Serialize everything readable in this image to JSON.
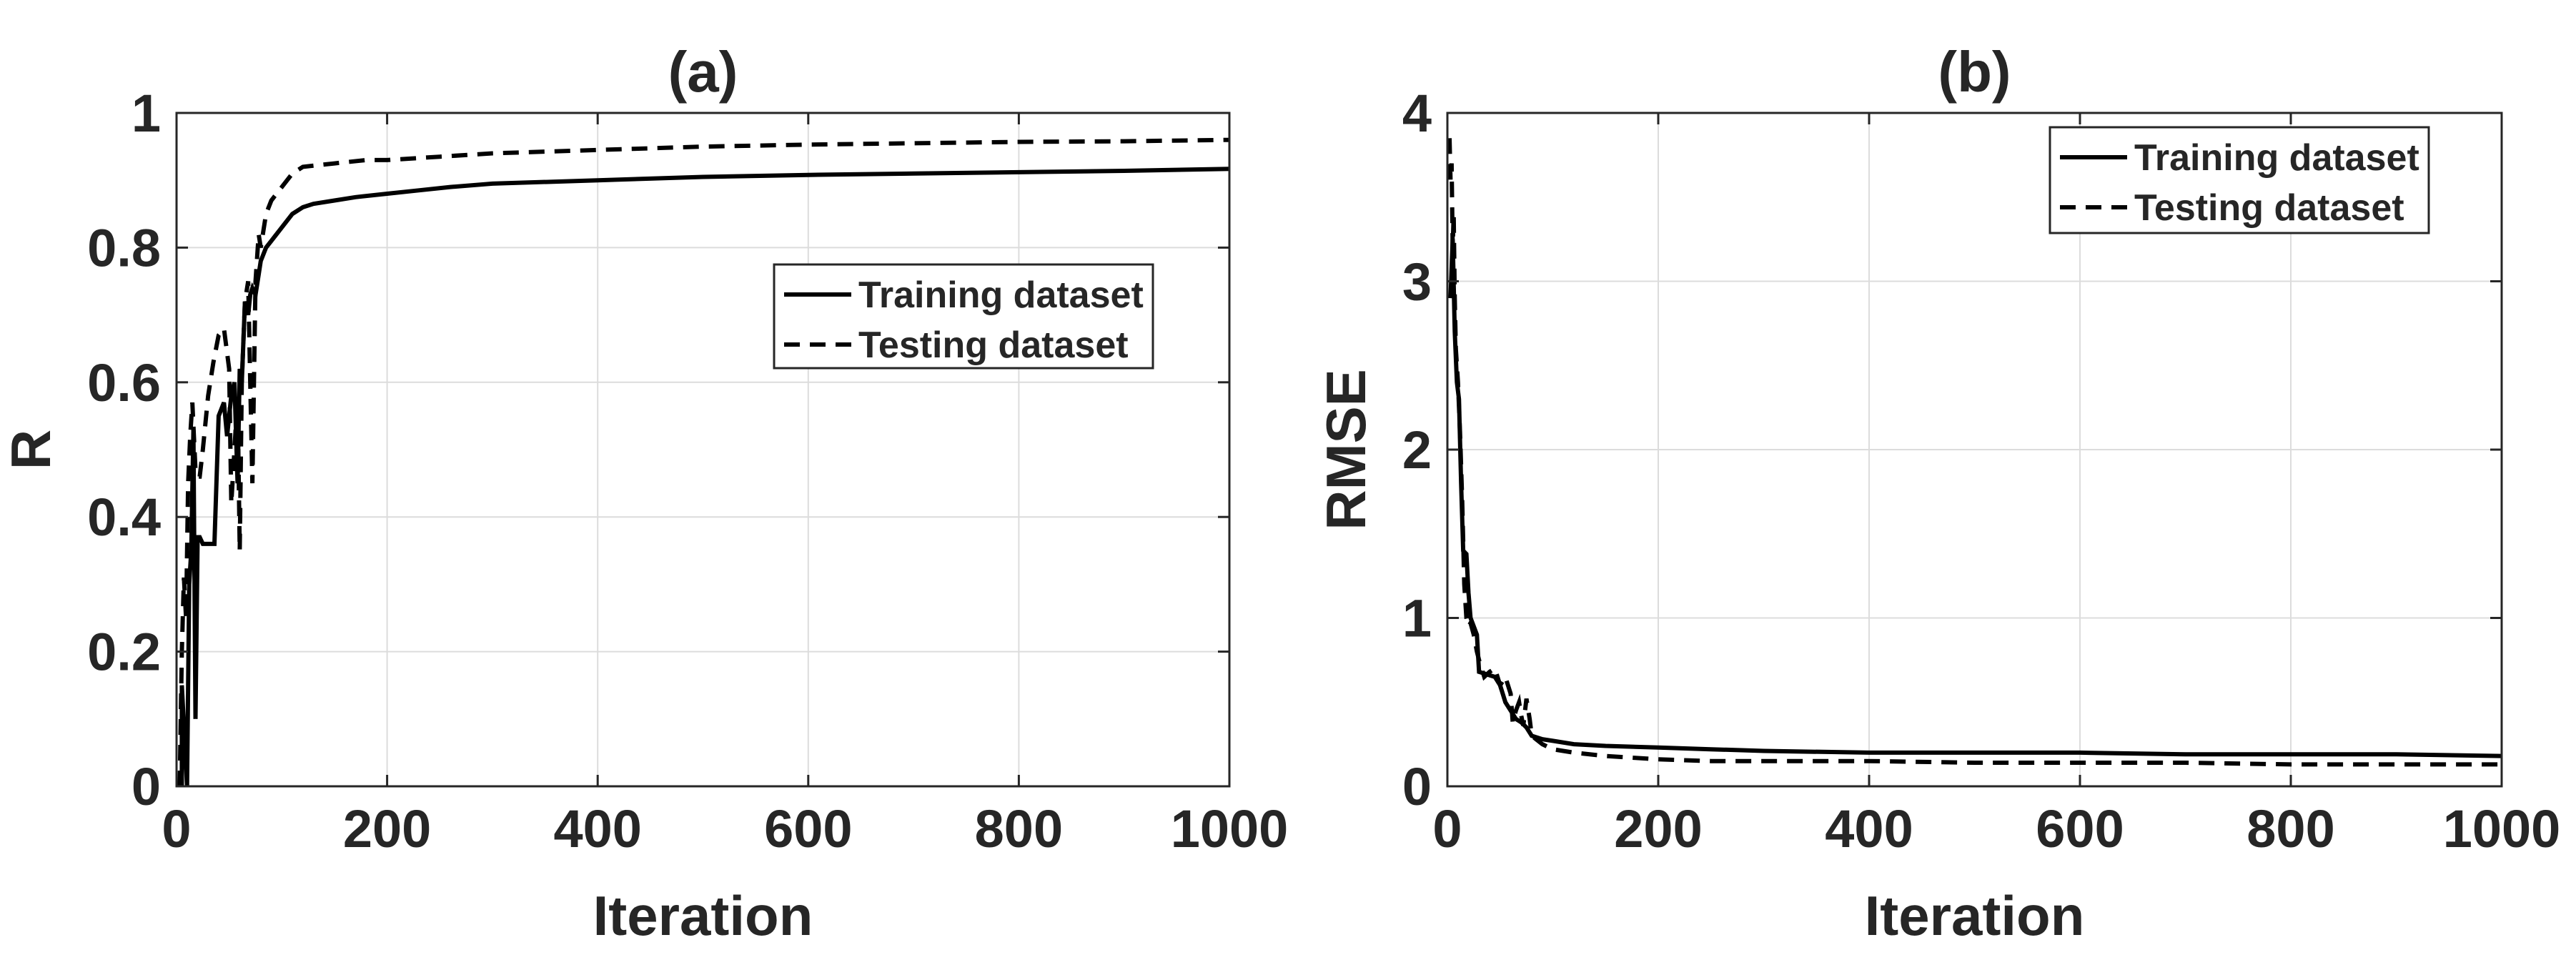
{
  "chart_data": [
    {
      "type": "line",
      "title": "(a)",
      "xlabel": "Iteration",
      "ylabel": "R",
      "xlim": [
        0,
        1000
      ],
      "ylim": [
        0,
        1
      ],
      "xticks": [
        "0",
        "200",
        "400",
        "600",
        "800",
        "1000"
      ],
      "yticks": [
        "0",
        "0.2",
        "0.4",
        "0.6",
        "0.8",
        "1"
      ],
      "grid": true,
      "legend_position": "right-middle",
      "series": [
        {
          "name": "Training dataset",
          "style": "solid",
          "color": "#000000",
          "x": [
            5,
            5,
            10,
            12,
            14,
            16,
            18,
            20,
            22,
            25,
            28,
            32,
            36,
            40,
            45,
            48,
            50,
            52,
            55,
            58,
            60,
            62,
            65,
            68,
            70,
            72,
            75,
            78,
            80,
            85,
            90,
            95,
            100,
            110,
            120,
            130,
            150,
            170,
            200,
            230,
            260,
            300,
            400,
            500,
            600,
            700,
            800,
            900,
            1000
          ],
          "y": [
            0.0,
            0.15,
            0.0,
            0.3,
            0.35,
            0.53,
            0.1,
            0.37,
            0.37,
            0.36,
            0.36,
            0.36,
            0.36,
            0.55,
            0.57,
            0.52,
            0.55,
            0.58,
            0.6,
            0.45,
            0.62,
            0.6,
            0.72,
            0.7,
            0.73,
            0.74,
            0.73,
            0.76,
            0.78,
            0.8,
            0.81,
            0.82,
            0.83,
            0.85,
            0.86,
            0.865,
            0.87,
            0.875,
            0.88,
            0.885,
            0.89,
            0.895,
            0.9,
            0.905,
            0.908,
            0.91,
            0.912,
            0.914,
            0.917
          ]
        },
        {
          "name": "Testing dataset",
          "style": "dashed",
          "color": "#000000",
          "x": [
            3,
            5,
            7,
            9,
            11,
            13,
            15,
            18,
            20,
            22,
            25,
            30,
            35,
            40,
            45,
            50,
            52,
            55,
            58,
            60,
            62,
            65,
            68,
            70,
            72,
            75,
            78,
            80,
            85,
            90,
            95,
            100,
            110,
            120,
            150,
            180,
            200,
            250,
            300,
            400,
            500,
            600,
            700,
            800,
            900,
            1000
          ],
          "y": [
            0.0,
            0.2,
            0.31,
            0.25,
            0.45,
            0.52,
            0.57,
            0.47,
            0.46,
            0.46,
            0.5,
            0.58,
            0.63,
            0.67,
            0.68,
            0.62,
            0.42,
            0.5,
            0.58,
            0.35,
            0.6,
            0.72,
            0.75,
            0.6,
            0.45,
            0.75,
            0.82,
            0.8,
            0.85,
            0.87,
            0.88,
            0.89,
            0.91,
            0.92,
            0.925,
            0.93,
            0.93,
            0.935,
            0.94,
            0.945,
            0.95,
            0.953,
            0.955,
            0.957,
            0.958,
            0.96
          ]
        }
      ]
    },
    {
      "type": "line",
      "title": "(b)",
      "xlabel": "Iteration",
      "ylabel": "RMSE",
      "xlim": [
        0,
        1000
      ],
      "ylim": [
        0,
        4
      ],
      "xticks": [
        "0",
        "200",
        "400",
        "600",
        "800",
        "1000"
      ],
      "yticks": [
        "0",
        "1",
        "2",
        "3",
        "4"
      ],
      "grid": true,
      "legend_position": "top-right",
      "series": [
        {
          "name": "Training dataset",
          "style": "solid",
          "color": "#000000",
          "x": [
            3,
            5,
            7,
            9,
            11,
            13,
            15,
            18,
            20,
            22,
            25,
            28,
            30,
            35,
            40,
            45,
            50,
            55,
            60,
            65,
            70,
            75,
            80,
            90,
            100,
            120,
            150,
            200,
            250,
            300,
            400,
            500,
            600,
            700,
            800,
            900,
            1000
          ],
          "y": [
            2.9,
            3.25,
            2.7,
            2.4,
            2.3,
            1.8,
            1.4,
            1.38,
            1.15,
            1.0,
            0.95,
            0.9,
            0.68,
            0.67,
            0.66,
            0.65,
            0.6,
            0.5,
            0.45,
            0.4,
            0.38,
            0.35,
            0.3,
            0.28,
            0.27,
            0.25,
            0.24,
            0.23,
            0.22,
            0.21,
            0.2,
            0.2,
            0.2,
            0.19,
            0.19,
            0.19,
            0.18
          ]
        },
        {
          "name": "Testing dataset",
          "style": "dashed",
          "color": "#000000",
          "x": [
            2,
            3,
            4,
            5,
            6,
            7,
            8,
            10,
            12,
            14,
            16,
            18,
            20,
            22,
            25,
            28,
            30,
            35,
            40,
            45,
            50,
            55,
            60,
            62,
            65,
            68,
            70,
            72,
            75,
            78,
            80,
            90,
            100,
            120,
            150,
            200,
            250,
            300,
            400,
            500,
            600,
            700,
            800,
            900,
            1000
          ],
          "y": [
            3.85,
            3.6,
            3.7,
            3.2,
            3.4,
            2.9,
            2.6,
            2.4,
            2.1,
            1.7,
            1.2,
            1.0,
            0.95,
            0.97,
            0.9,
            0.8,
            0.75,
            0.65,
            0.68,
            0.7,
            0.6,
            0.65,
            0.55,
            0.38,
            0.45,
            0.5,
            0.42,
            0.36,
            0.52,
            0.4,
            0.3,
            0.25,
            0.22,
            0.2,
            0.18,
            0.16,
            0.15,
            0.15,
            0.15,
            0.14,
            0.14,
            0.14,
            0.13,
            0.13,
            0.13
          ]
        }
      ]
    }
  ]
}
